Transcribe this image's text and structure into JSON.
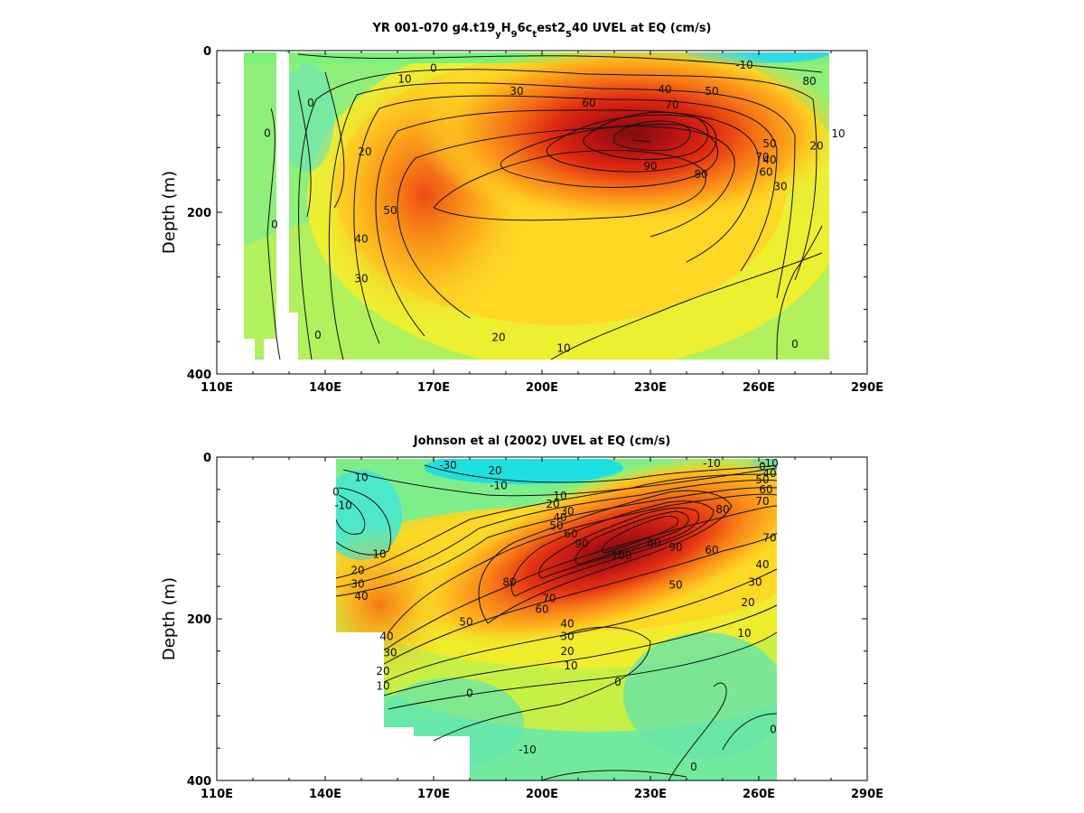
{
  "chart_data": [
    {
      "type": "heatmap",
      "title": "YR 001-070 g4.t19",
      "title_parts": [
        {
          "t": "YR 001-070 g4.t19"
        },
        {
          "t": "y",
          "sub": true
        },
        {
          "t": "H"
        },
        {
          "t": "9",
          "sub": true
        },
        {
          "t": "6c"
        },
        {
          "t": "t",
          "sub": true
        },
        {
          "t": "est2"
        },
        {
          "t": "5",
          "sub": true
        },
        {
          "t": "40 UVEL at EQ (cm/s)"
        }
      ],
      "xlabel": "",
      "ylabel": "Depth (m)",
      "xlim": [
        110,
        290
      ],
      "ylim": [
        0,
        400
      ],
      "x_ticks": [
        "110E",
        "140E",
        "170E",
        "200E",
        "230E",
        "260E",
        "290E"
      ],
      "y_ticks": [
        "0",
        "200",
        "400"
      ],
      "core": {
        "lon": 227,
        "depth": 108,
        "max": 90
      },
      "contour_labels": [
        {
          "text": "-10",
          "lon": 256,
          "depth": 18
        },
        {
          "text": "0",
          "lon": 170,
          "depth": 22
        },
        {
          "text": "10",
          "lon": 162,
          "depth": 35
        },
        {
          "text": "30",
          "lon": 193,
          "depth": 50
        },
        {
          "text": "40",
          "lon": 234,
          "depth": 48
        },
        {
          "text": "50",
          "lon": 247,
          "depth": 50
        },
        {
          "text": "60",
          "lon": 213,
          "depth": 65
        },
        {
          "text": "70",
          "lon": 236,
          "depth": 67
        },
        {
          "text": "80",
          "lon": 274,
          "depth": 38
        },
        {
          "text": "10",
          "lon": 282,
          "depth": 103
        },
        {
          "text": "20",
          "lon": 276,
          "depth": 118
        },
        {
          "text": "50",
          "lon": 263,
          "depth": 115
        },
        {
          "text": "40",
          "lon": 263,
          "depth": 135
        },
        {
          "text": "70",
          "lon": 261,
          "depth": 132
        },
        {
          "text": "90",
          "lon": 230,
          "depth": 143
        },
        {
          "text": "80",
          "lon": 244,
          "depth": 153
        },
        {
          "text": "60",
          "lon": 262,
          "depth": 150
        },
        {
          "text": "30",
          "lon": 266,
          "depth": 168
        },
        {
          "text": "0",
          "lon": 136,
          "depth": 65
        },
        {
          "text": "0",
          "lon": 124,
          "depth": 102
        },
        {
          "text": "20",
          "lon": 151,
          "depth": 125
        },
        {
          "text": "0",
          "lon": 126,
          "depth": 215
        },
        {
          "text": "50",
          "lon": 158,
          "depth": 198
        },
        {
          "text": "40",
          "lon": 150,
          "depth": 233
        },
        {
          "text": "30",
          "lon": 150,
          "depth": 282
        },
        {
          "text": "0",
          "lon": 138,
          "depth": 352
        },
        {
          "text": "20",
          "lon": 188,
          "depth": 355
        },
        {
          "text": "10",
          "lon": 206,
          "depth": 368
        },
        {
          "text": "0",
          "lon": 270,
          "depth": 363
        }
      ]
    },
    {
      "type": "heatmap",
      "title": "Johnson et al (2002) UVEL at EQ (cm/s)",
      "xlabel": "",
      "ylabel": "Depth (m)",
      "xlim": [
        110,
        290
      ],
      "ylim": [
        0,
        400
      ],
      "x_ticks": [
        "110E",
        "140E",
        "170E",
        "200E",
        "230E",
        "260E",
        "290E"
      ],
      "y_ticks": [
        "0",
        "200",
        "400"
      ],
      "core": {
        "lon": 222,
        "depth": 115,
        "max": 100
      },
      "contour_labels": [
        {
          "text": "-30",
          "lon": 174,
          "depth": 10
        },
        {
          "text": "20",
          "lon": 187,
          "depth": 17
        },
        {
          "text": "-10",
          "lon": 247,
          "depth": 8
        },
        {
          "text": "0",
          "lon": 261,
          "depth": 12
        },
        {
          "text": "-10",
          "lon": 263,
          "depth": 8
        },
        {
          "text": "10",
          "lon": 150,
          "depth": 25
        },
        {
          "text": "-10",
          "lon": 188,
          "depth": 35
        },
        {
          "text": "0",
          "lon": 143,
          "depth": 43
        },
        {
          "text": "-10",
          "lon": 145,
          "depth": 60
        },
        {
          "text": "10",
          "lon": 205,
          "depth": 48
        },
        {
          "text": "20",
          "lon": 203,
          "depth": 58
        },
        {
          "text": "30",
          "lon": 207,
          "depth": 67
        },
        {
          "text": "40",
          "lon": 205,
          "depth": 75
        },
        {
          "text": "50",
          "lon": 204,
          "depth": 85
        },
        {
          "text": "60",
          "lon": 208,
          "depth": 95
        },
        {
          "text": "90",
          "lon": 211,
          "depth": 107
        },
        {
          "text": "100",
          "lon": 222,
          "depth": 122
        },
        {
          "text": "80",
          "lon": 231,
          "depth": 106
        },
        {
          "text": "90",
          "lon": 237,
          "depth": 112
        },
        {
          "text": "60",
          "lon": 247,
          "depth": 115
        },
        {
          "text": "80",
          "lon": 250,
          "depth": 65
        },
        {
          "text": "70",
          "lon": 261,
          "depth": 55
        },
        {
          "text": "60",
          "lon": 262,
          "depth": 40
        },
        {
          "text": "50",
          "lon": 261,
          "depth": 28
        },
        {
          "text": "40",
          "lon": 263,
          "depth": 20
        },
        {
          "text": "70",
          "lon": 263,
          "depth": 100
        },
        {
          "text": "40",
          "lon": 261,
          "depth": 133
        },
        {
          "text": "30",
          "lon": 259,
          "depth": 155
        },
        {
          "text": "20",
          "lon": 257,
          "depth": 180
        },
        {
          "text": "10",
          "lon": 256,
          "depth": 218
        },
        {
          "text": "80",
          "lon": 191,
          "depth": 155
        },
        {
          "text": "70",
          "lon": 202,
          "depth": 175
        },
        {
          "text": "60",
          "lon": 200,
          "depth": 188
        },
        {
          "text": "50",
          "lon": 237,
          "depth": 158
        },
        {
          "text": "50",
          "lon": 179,
          "depth": 204
        },
        {
          "text": "40",
          "lon": 207,
          "depth": 206
        },
        {
          "text": "30",
          "lon": 207,
          "depth": 222
        },
        {
          "text": "20",
          "lon": 207,
          "depth": 240
        },
        {
          "text": "10",
          "lon": 208,
          "depth": 258
        },
        {
          "text": "20",
          "lon": 149,
          "depth": 140
        },
        {
          "text": "30",
          "lon": 149,
          "depth": 157
        },
        {
          "text": "40",
          "lon": 150,
          "depth": 172
        },
        {
          "text": "10",
          "lon": 155,
          "depth": 120
        },
        {
          "text": "40",
          "lon": 157,
          "depth": 222
        },
        {
          "text": "30",
          "lon": 158,
          "depth": 242
        },
        {
          "text": "20",
          "lon": 156,
          "depth": 265
        },
        {
          "text": "10",
          "lon": 156,
          "depth": 283
        },
        {
          "text": "0",
          "lon": 180,
          "depth": 292
        },
        {
          "text": "0",
          "lon": 221,
          "depth": 278
        },
        {
          "text": "0",
          "lon": 264,
          "depth": 337
        },
        {
          "text": "-10",
          "lon": 196,
          "depth": 362
        },
        {
          "text": "0",
          "lon": 242,
          "depth": 383
        }
      ]
    }
  ]
}
